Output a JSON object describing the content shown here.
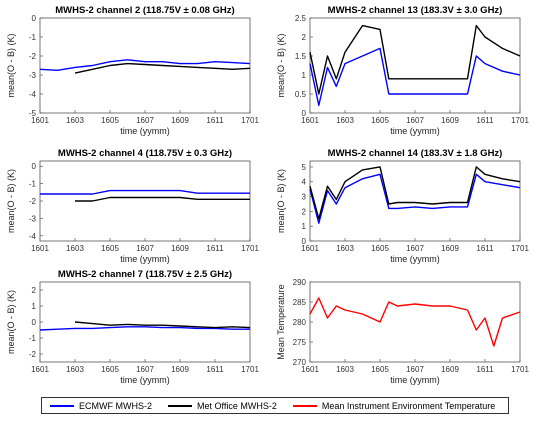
{
  "chart_data": [
    {
      "type": "line",
      "title": "MWHS-2 channel 2 (118.75V ± 0.08 GHz)",
      "xlabel": "time (yymm)",
      "ylabel": "mean(O - B) (K)",
      "xticks": [
        "1601",
        "1603",
        "1605",
        "1607",
        "1609",
        "1611",
        "1701"
      ],
      "yticks": [
        0,
        -1,
        -2,
        -3,
        -4,
        -5
      ],
      "xlim": [
        "1601",
        "1701"
      ],
      "ylim": [
        -5,
        0
      ],
      "series": [
        {
          "name": "ECMWF MWHS-2",
          "color": "#0000ff",
          "x": [
            "1601",
            "1602",
            "1603",
            "1604",
            "1605",
            "1606",
            "1607",
            "1608",
            "1609",
            "1610",
            "1611",
            "1612",
            "1701"
          ],
          "values": [
            -2.7,
            -2.75,
            -2.6,
            -2.5,
            -2.3,
            -2.2,
            -2.3,
            -2.3,
            -2.4,
            -2.4,
            -2.3,
            -2.35,
            -2.4
          ]
        },
        {
          "name": "Met Office MWHS-2",
          "color": "#000000",
          "x": [
            "1603",
            "1604",
            "1605",
            "1606",
            "1607",
            "1608",
            "1609",
            "1610",
            "1611",
            "1612",
            "1701"
          ],
          "values": [
            -2.9,
            -2.7,
            -2.5,
            -2.4,
            -2.45,
            -2.5,
            -2.55,
            -2.6,
            -2.65,
            -2.7,
            -2.65
          ]
        }
      ]
    },
    {
      "type": "line",
      "title": "MWHS-2 channel 13 (183.3V ± 3.0 GHz)",
      "xlabel": "time (yymm)",
      "ylabel": "mean(O - B) (K)",
      "xticks": [
        "1601",
        "1603",
        "1605",
        "1607",
        "1609",
        "1611",
        "1701"
      ],
      "yticks": [
        0,
        0.5,
        1,
        1.5,
        2,
        2.5
      ],
      "xlim": [
        "1601",
        "1701"
      ],
      "ylim": [
        0,
        2.5
      ],
      "series": [
        {
          "name": "ECMWF MWHS-2",
          "color": "#0000ff",
          "x": [
            "1601",
            "1601",
            "1602",
            "1602",
            "1603",
            "1604",
            "1605",
            "1605",
            "1606",
            "1607",
            "1608",
            "1609",
            "1610",
            "1610",
            "1611",
            "1612",
            "1701"
          ],
          "values": [
            1.3,
            0.2,
            1.2,
            0.7,
            1.3,
            1.5,
            1.7,
            0.5,
            0.5,
            0.5,
            0.5,
            0.5,
            0.5,
            1.5,
            1.3,
            1.1,
            1.0
          ]
        },
        {
          "name": "Met Office MWHS-2",
          "color": "#000000",
          "x": [
            "1601",
            "1601",
            "1602",
            "1602",
            "1603",
            "1604",
            "1605",
            "1605",
            "1606",
            "1607",
            "1608",
            "1609",
            "1610",
            "1610",
            "1611",
            "1612",
            "1701"
          ],
          "values": [
            1.6,
            0.5,
            1.5,
            0.9,
            1.6,
            2.3,
            2.2,
            0.9,
            0.9,
            0.9,
            0.9,
            0.9,
            0.9,
            2.3,
            2.0,
            1.7,
            1.5
          ]
        }
      ]
    },
    {
      "type": "line",
      "title": "MWHS-2 channel 4 (118.75V ± 0.3 GHz)",
      "xlabel": "time (yymm)",
      "ylabel": "mean(O - B) (K)",
      "xticks": [
        "1601",
        "1603",
        "1605",
        "1607",
        "1609",
        "1611",
        "1701"
      ],
      "yticks": [
        0,
        -1,
        -2,
        -3,
        -4
      ],
      "xlim": [
        "1601",
        "1701"
      ],
      "ylim": [
        -4.3,
        0.3
      ],
      "series": [
        {
          "name": "ECMWF MWHS-2",
          "color": "#0000ff",
          "x": [
            "1601",
            "1602",
            "1603",
            "1604",
            "1605",
            "1606",
            "1607",
            "1608",
            "1609",
            "1610",
            "1611",
            "1612",
            "1701"
          ],
          "values": [
            -1.6,
            -1.6,
            -1.6,
            -1.6,
            -1.4,
            -1.4,
            -1.4,
            -1.4,
            -1.4,
            -1.55,
            -1.55,
            -1.55,
            -1.55
          ]
        },
        {
          "name": "Met Office MWHS-2",
          "color": "#000000",
          "x": [
            "1603",
            "1604",
            "1605",
            "1606",
            "1607",
            "1608",
            "1609",
            "1610",
            "1611",
            "1612",
            "1701"
          ],
          "values": [
            -2.0,
            -2.0,
            -1.8,
            -1.8,
            -1.8,
            -1.8,
            -1.8,
            -1.9,
            -1.9,
            -1.9,
            -1.9
          ]
        }
      ]
    },
    {
      "type": "line",
      "title": "MWHS-2 channel 14 (183.3V ± 1.8 GHz)",
      "xlabel": "time (yymm)",
      "ylabel": "mean(O - B) (K)",
      "xticks": [
        "1601",
        "1603",
        "1605",
        "1607",
        "1609",
        "1611",
        "1701"
      ],
      "yticks": [
        0,
        1,
        2,
        3,
        4,
        5
      ],
      "xlim": [
        "1601",
        "1701"
      ],
      "ylim": [
        0,
        5.4
      ],
      "series": [
        {
          "name": "ECMWF MWHS-2",
          "color": "#0000ff",
          "x": [
            "1601",
            "1601",
            "1602",
            "1602",
            "1603",
            "1604",
            "1605",
            "1605",
            "1606",
            "1607",
            "1608",
            "1609",
            "1610",
            "1610",
            "1611",
            "1612",
            "1701"
          ],
          "values": [
            3.5,
            1.2,
            3.4,
            2.5,
            3.6,
            4.2,
            4.5,
            2.2,
            2.2,
            2.3,
            2.2,
            2.3,
            2.3,
            4.5,
            4.0,
            3.8,
            3.6
          ]
        },
        {
          "name": "Met Office MWHS-2",
          "color": "#000000",
          "x": [
            "1601",
            "1601",
            "1602",
            "1602",
            "1603",
            "1604",
            "1605",
            "1605",
            "1606",
            "1607",
            "1608",
            "1609",
            "1610",
            "1610",
            "1611",
            "1612",
            "1701"
          ],
          "values": [
            3.7,
            1.5,
            3.7,
            2.8,
            4.0,
            4.8,
            5.0,
            2.5,
            2.6,
            2.6,
            2.5,
            2.6,
            2.6,
            5.0,
            4.5,
            4.2,
            4.0
          ]
        }
      ]
    },
    {
      "type": "line",
      "title": "MWHS-2 channel 7 (118.75V ± 2.5 GHz)",
      "xlabel": "time (yymm)",
      "ylabel": "mean(O - B) (K)",
      "xticks": [
        "1601",
        "1603",
        "1605",
        "1607",
        "1609",
        "1611",
        "1701"
      ],
      "yticks": [
        2,
        1,
        0,
        -1,
        -2
      ],
      "xlim": [
        "1601",
        "1701"
      ],
      "ylim": [
        -2.5,
        2.5
      ],
      "series": [
        {
          "name": "ECMWF MWHS-2",
          "color": "#0000ff",
          "x": [
            "1601",
            "1602",
            "1603",
            "1604",
            "1605",
            "1606",
            "1607",
            "1608",
            "1609",
            "1610",
            "1611",
            "1612",
            "1701"
          ],
          "values": [
            -0.5,
            -0.45,
            -0.4,
            -0.4,
            -0.35,
            -0.3,
            -0.3,
            -0.35,
            -0.35,
            -0.4,
            -0.4,
            -0.45,
            -0.45
          ]
        },
        {
          "name": "Met Office MWHS-2",
          "color": "#000000",
          "x": [
            "1603",
            "1604",
            "1605",
            "1606",
            "1607",
            "1608",
            "1609",
            "1610",
            "1611",
            "1612",
            "1701"
          ],
          "values": [
            0.0,
            -0.1,
            -0.2,
            -0.15,
            -0.2,
            -0.2,
            -0.25,
            -0.3,
            -0.35,
            -0.3,
            -0.35
          ]
        }
      ]
    },
    {
      "type": "line",
      "title": "",
      "xlabel": "time (yymm)",
      "ylabel": "Mean Temperature",
      "xticks": [
        "1601",
        "1603",
        "1605",
        "1607",
        "1609",
        "1611",
        "1701"
      ],
      "yticks": [
        270,
        275,
        280,
        285,
        290
      ],
      "xlim": [
        "1601",
        "1701"
      ],
      "ylim": [
        270,
        290
      ],
      "series": [
        {
          "name": "Mean Instrument Environment Temperature",
          "color": "#ff0000",
          "x": [
            "1601",
            "1601",
            "1602",
            "1602",
            "1603",
            "1604",
            "1605",
            "1605",
            "1606",
            "1607",
            "1608",
            "1609",
            "1610",
            "1610",
            "1611",
            "1611",
            "1612",
            "1701"
          ],
          "values": [
            282,
            286,
            281,
            284,
            283,
            282,
            280,
            285,
            284,
            284.5,
            284,
            284,
            283,
            278,
            281,
            274,
            281,
            282.5
          ]
        }
      ]
    }
  ],
  "legend": {
    "items": [
      {
        "label": "ECMWF MWHS-2",
        "color": "#0000ff"
      },
      {
        "label": "Met Office MWHS-2",
        "color": "#000000"
      },
      {
        "label": "Mean Instrument Environment Temperature",
        "color": "#ff0000"
      }
    ]
  }
}
